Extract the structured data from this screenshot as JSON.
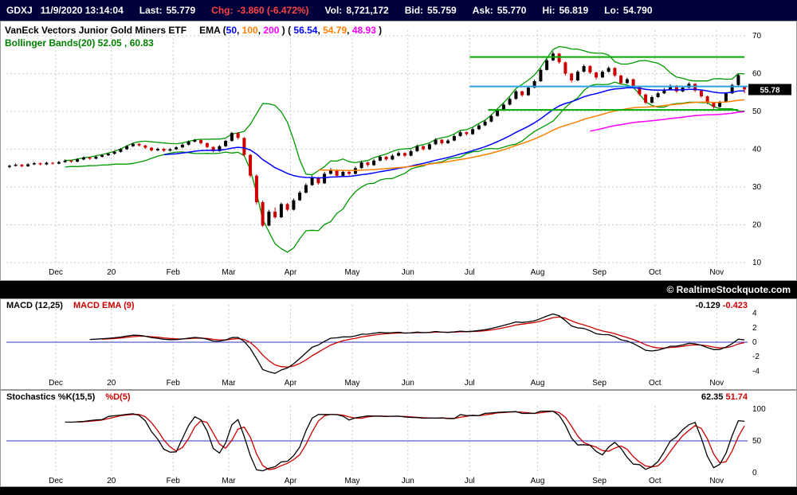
{
  "quote": {
    "symbol": "GDXJ",
    "datetime": "11/9/2020 13:14:04",
    "fields": [
      {
        "label": "Last:",
        "value": "55.779"
      },
      {
        "label": "Chg:",
        "value": "-3.860 (-6.472%)"
      },
      {
        "label": "Vol:",
        "value": "8,721,172"
      },
      {
        "label": "Bid:",
        "value": "55.759"
      },
      {
        "label": "Ask:",
        "value": "55.770"
      },
      {
        "label": "Hi:",
        "value": "56.819"
      },
      {
        "label": "Lo:",
        "value": "54.790"
      }
    ]
  },
  "main_chart": {
    "title": "VanEck Vectors Junior Gold Miners ETF",
    "ema_legend": {
      "prefix": "EMA (",
      "p1": "50",
      "c1": ", ",
      "p2": "100",
      "c2": ", ",
      "p3": "200",
      "mid": " )  ( ",
      "v1": "56.54",
      "c3": ", ",
      "v2": "54.79",
      "c4": ", ",
      "v3": "48.93",
      "suffix": " )"
    },
    "bb_legend": "Bollinger Bands(20) 52.05 , 60.83",
    "price_tag": "55.78"
  },
  "copyright": "© RealtimeStockquote.com",
  "macd_panel": {
    "label": "MACD (12,25)",
    "label2": "MACD EMA (9)",
    "v1": "-0.129",
    "v2": "-0.423"
  },
  "stoch_panel": {
    "label": "Stochastics %K(15,5)",
    "label2": "%D(5)",
    "v1": "62.35",
    "v2": "51.74"
  },
  "chart_data": {
    "type": "candlestick",
    "symbol": "GDXJ",
    "interval": "daily",
    "title": "VanEck Vectors Junior Gold Miners ETF with EMA(50,100,200) and Bollinger Bands(20)",
    "ylim": [
      8,
      73
    ],
    "y_ticks": [
      70,
      60,
      50,
      40,
      30,
      20,
      10
    ],
    "last_price": 55.78,
    "month_ticks": [
      {
        "label": "Dec",
        "bar": 8
      },
      {
        "label": "20",
        "bar": 17
      },
      {
        "label": "Feb",
        "bar": 27
      },
      {
        "label": "Mar",
        "bar": 36
      },
      {
        "label": "Apr",
        "bar": 46
      },
      {
        "label": "May",
        "bar": 56
      },
      {
        "label": "Jun",
        "bar": 65
      },
      {
        "label": "Jul",
        "bar": 75
      },
      {
        "label": "Aug",
        "bar": 86
      },
      {
        "label": "Sep",
        "bar": 96
      },
      {
        "label": "Oct",
        "bar": 105
      },
      {
        "label": "Nov",
        "bar": 115
      }
    ],
    "bars_ohlc": [
      [
        35.3,
        35.9,
        35.0,
        35.6
      ],
      [
        35.6,
        36.2,
        35.4,
        35.9
      ],
      [
        35.9,
        36.1,
        35.2,
        35.5
      ],
      [
        35.5,
        36.3,
        35.3,
        36.0
      ],
      [
        36.0,
        36.6,
        35.8,
        36.3
      ],
      [
        36.3,
        36.5,
        35.7,
        36.0
      ],
      [
        36.0,
        36.7,
        35.8,
        36.4
      ],
      [
        36.4,
        36.6,
        35.9,
        36.2
      ],
      [
        36.2,
        36.9,
        36.0,
        36.6
      ],
      [
        36.6,
        37.3,
        36.4,
        37.0
      ],
      [
        37.0,
        37.2,
        36.4,
        36.7
      ],
      [
        36.7,
        37.6,
        36.5,
        37.3
      ],
      [
        37.3,
        38.1,
        37.1,
        37.8
      ],
      [
        37.8,
        38.0,
        37.2,
        37.5
      ],
      [
        37.5,
        38.3,
        37.3,
        38.0
      ],
      [
        38.0,
        38.7,
        37.8,
        38.4
      ],
      [
        38.4,
        39.1,
        38.2,
        38.8
      ],
      [
        38.8,
        39.6,
        38.6,
        39.3
      ],
      [
        39.3,
        40.3,
        39.1,
        40.0
      ],
      [
        40.0,
        41.1,
        39.8,
        40.8
      ],
      [
        40.8,
        41.7,
        40.6,
        41.4
      ],
      [
        41.4,
        41.6,
        40.7,
        41.0
      ],
      [
        41.0,
        41.2,
        40.1,
        40.4
      ],
      [
        40.4,
        40.6,
        39.4,
        39.7
      ],
      [
        39.7,
        40.4,
        39.5,
        40.1
      ],
      [
        40.1,
        40.3,
        39.3,
        39.6
      ],
      [
        39.6,
        40.3,
        39.4,
        40.0
      ],
      [
        40.0,
        40.8,
        39.8,
        40.5
      ],
      [
        40.5,
        41.5,
        40.3,
        41.2
      ],
      [
        41.2,
        42.3,
        41.0,
        42.0
      ],
      [
        42.0,
        42.7,
        41.8,
        42.4
      ],
      [
        42.4,
        42.6,
        41.3,
        41.6
      ],
      [
        41.6,
        41.8,
        40.3,
        40.6
      ],
      [
        40.6,
        40.8,
        39.2,
        39.5
      ],
      [
        39.5,
        41.1,
        39.3,
        40.8
      ],
      [
        40.8,
        42.5,
        40.6,
        42.2
      ],
      [
        42.2,
        44.6,
        42.0,
        44.3
      ],
      [
        44.3,
        44.5,
        42.6,
        43.0
      ],
      [
        43.0,
        43.2,
        38.1,
        38.5
      ],
      [
        38.5,
        38.7,
        32.5,
        33.0
      ],
      [
        33.0,
        33.4,
        25.4,
        26.0
      ],
      [
        26.0,
        26.4,
        19.4,
        19.8
      ],
      [
        19.8,
        24.0,
        19.6,
        23.5
      ],
      [
        23.5,
        24.6,
        21.6,
        22.0
      ],
      [
        22.0,
        25.9,
        21.8,
        25.5
      ],
      [
        25.5,
        25.8,
        23.6,
        24.0
      ],
      [
        24.0,
        27.0,
        23.8,
        26.5
      ],
      [
        26.5,
        29.0,
        26.3,
        28.5
      ],
      [
        28.5,
        31.0,
        28.3,
        30.5
      ],
      [
        30.5,
        33.0,
        30.3,
        32.5
      ],
      [
        32.5,
        32.7,
        30.6,
        31.0
      ],
      [
        31.0,
        34.0,
        30.8,
        33.5
      ],
      [
        33.5,
        35.0,
        33.3,
        34.5
      ],
      [
        34.5,
        34.7,
        32.7,
        33.0
      ],
      [
        33.0,
        34.5,
        32.8,
        34.0
      ],
      [
        34.0,
        34.2,
        33.1,
        33.5
      ],
      [
        33.5,
        35.4,
        33.3,
        35.0
      ],
      [
        35.0,
        36.9,
        34.8,
        36.5
      ],
      [
        36.5,
        36.7,
        35.4,
        35.8
      ],
      [
        35.8,
        37.4,
        35.6,
        37.0
      ],
      [
        37.0,
        38.4,
        36.8,
        38.0
      ],
      [
        38.0,
        38.2,
        37.0,
        37.3
      ],
      [
        37.3,
        38.7,
        37.1,
        38.3
      ],
      [
        38.3,
        39.4,
        38.1,
        39.0
      ],
      [
        39.0,
        39.2,
        37.9,
        38.3
      ],
      [
        38.3,
        39.9,
        38.1,
        39.5
      ],
      [
        39.5,
        41.2,
        39.3,
        40.8
      ],
      [
        40.8,
        41.0,
        39.6,
        40.0
      ],
      [
        40.0,
        41.7,
        39.8,
        41.3
      ],
      [
        41.3,
        42.9,
        41.1,
        42.5
      ],
      [
        42.5,
        42.7,
        41.2,
        41.6
      ],
      [
        41.6,
        42.7,
        41.4,
        42.3
      ],
      [
        42.3,
        43.9,
        42.1,
        43.5
      ],
      [
        43.5,
        44.9,
        43.3,
        44.5
      ],
      [
        44.5,
        44.7,
        43.6,
        44.0
      ],
      [
        44.0,
        45.7,
        43.8,
        45.3
      ],
      [
        45.3,
        46.7,
        45.1,
        46.3
      ],
      [
        46.3,
        47.7,
        46.1,
        47.3
      ],
      [
        47.3,
        49.2,
        47.1,
        48.8
      ],
      [
        48.8,
        50.7,
        48.6,
        50.3
      ],
      [
        50.3,
        52.2,
        50.1,
        51.8
      ],
      [
        51.8,
        53.7,
        51.6,
        53.3
      ],
      [
        53.3,
        55.7,
        53.1,
        55.3
      ],
      [
        55.3,
        55.5,
        53.9,
        54.3
      ],
      [
        54.3,
        56.7,
        54.1,
        56.3
      ],
      [
        56.3,
        58.4,
        56.1,
        58.0
      ],
      [
        58.0,
        61.4,
        57.8,
        61.0
      ],
      [
        61.0,
        63.9,
        60.8,
        63.5
      ],
      [
        63.5,
        65.9,
        63.3,
        65.3
      ],
      [
        65.3,
        65.5,
        62.6,
        63.0
      ],
      [
        63.0,
        63.2,
        59.5,
        60.0
      ],
      [
        60.0,
        60.2,
        57.7,
        58.2
      ],
      [
        58.2,
        60.9,
        58.0,
        60.5
      ],
      [
        60.5,
        62.4,
        60.3,
        62.0
      ],
      [
        62.0,
        62.2,
        59.9,
        60.3
      ],
      [
        60.3,
        60.5,
        58.5,
        59.0
      ],
      [
        59.0,
        60.9,
        58.8,
        60.5
      ],
      [
        60.5,
        61.9,
        60.3,
        61.5
      ],
      [
        61.5,
        61.7,
        59.1,
        59.5
      ],
      [
        59.5,
        59.7,
        57.1,
        57.5
      ],
      [
        57.5,
        58.9,
        57.3,
        58.5
      ],
      [
        58.5,
        58.7,
        56.1,
        56.5
      ],
      [
        56.5,
        56.7,
        54.1,
        54.5
      ],
      [
        54.5,
        54.7,
        51.9,
        52.3
      ],
      [
        52.3,
        54.2,
        52.1,
        53.8
      ],
      [
        53.8,
        55.2,
        53.6,
        54.8
      ],
      [
        54.8,
        56.2,
        54.6,
        55.8
      ],
      [
        55.8,
        57.2,
        55.6,
        56.8
      ],
      [
        56.8,
        57.0,
        54.9,
        55.3
      ],
      [
        55.3,
        56.7,
        55.1,
        56.3
      ],
      [
        56.3,
        57.7,
        56.1,
        57.3
      ],
      [
        57.3,
        57.5,
        55.1,
        55.5
      ],
      [
        55.5,
        55.7,
        53.6,
        54.0
      ],
      [
        54.0,
        54.2,
        51.9,
        52.3
      ],
      [
        52.3,
        52.5,
        50.7,
        51.2
      ],
      [
        51.2,
        52.8,
        51.0,
        52.5
      ],
      [
        52.5,
        55.1,
        52.3,
        54.8
      ],
      [
        54.8,
        57.3,
        54.6,
        57.0
      ],
      [
        57.0,
        59.9,
        56.8,
        59.6
      ],
      [
        56.5,
        56.8,
        54.8,
        55.8
      ]
    ],
    "overlays": {
      "ema": {
        "periods": [
          50,
          100,
          200
        ],
        "current": [
          56.54,
          54.79,
          48.93
        ],
        "colors": [
          "#0000ff",
          "#ff8000",
          "#ff00ff"
        ],
        "bar_periods": [
          25,
          50,
          80
        ],
        "draw_from_bar": [
          25,
          50,
          94
        ]
      },
      "bollinger": {
        "period": 20,
        "current": [
          52.05,
          60.83
        ],
        "color": "#009900",
        "bar_window": 10,
        "stdev_mult": 2
      }
    },
    "annotations": [
      {
        "name": "resistance-line",
        "value": 64.4,
        "from_bar": 75,
        "to_bar": 119.5,
        "color": "#00aa00",
        "width": 2
      },
      {
        "name": "support-line",
        "value": 50.4,
        "from_bar": 78,
        "to_bar": 118.5,
        "color": "#00aa00",
        "width": 2
      },
      {
        "name": "midline-cyan",
        "value": 56.6,
        "from_bar": 75,
        "to_bar": 120,
        "color": "#2aa0e8",
        "width": 2
      }
    ],
    "colors": {
      "up": "#000000",
      "down": "#cc0000",
      "grid": "#c8c8c8",
      "zero_line": "#3333bb",
      "axis_text": "#000000",
      "macd": "#000000",
      "macd_signal": "#cc0000",
      "stoch_k": "#000000",
      "stoch_d": "#cc0000"
    },
    "indicator_panels": [
      {
        "name": "MACD",
        "params": [
          12,
          25
        ],
        "signal_period": 9,
        "current": [
          -0.129,
          -0.423
        ],
        "ylim": [
          -4.9,
          4.9
        ],
        "y_ticks": [
          4,
          2,
          0,
          -2,
          -4
        ]
      },
      {
        "name": "Stochastics",
        "k_params": [
          15,
          5
        ],
        "d_period": 5,
        "current": [
          62.35,
          51.74
        ],
        "ylim": [
          0,
          100
        ],
        "y_ticks": [
          100,
          50,
          0
        ]
      }
    ]
  }
}
